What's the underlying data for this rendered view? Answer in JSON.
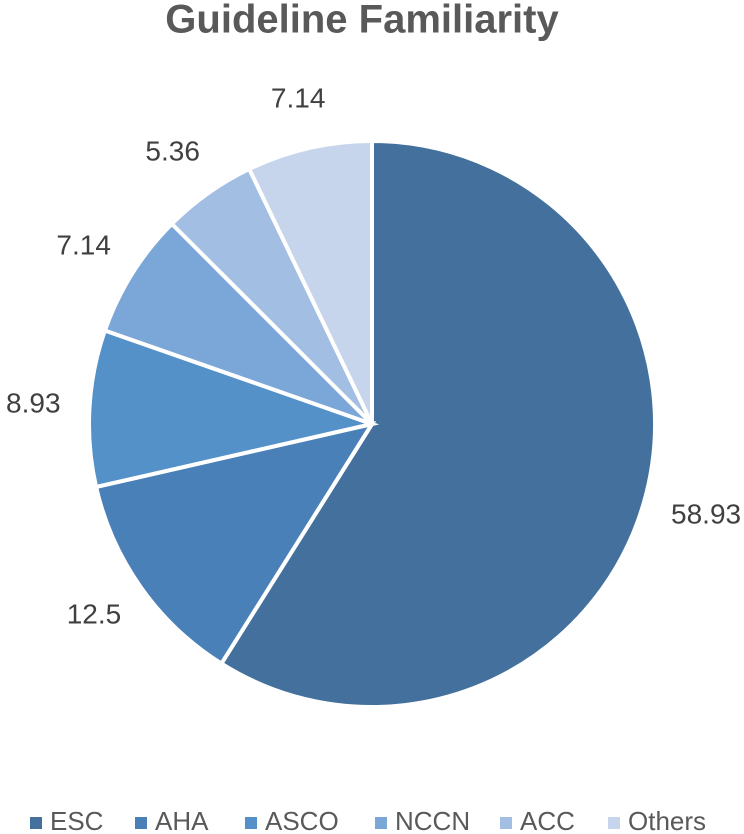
{
  "chart_data": {
    "type": "pie",
    "title": "Guideline Familiarity",
    "categories": [
      "ESC",
      "AHA",
      "ASCO",
      "NCCN",
      "ACC",
      "Others"
    ],
    "values": [
      58.93,
      12.5,
      8.93,
      7.14,
      5.36,
      7.14
    ],
    "colors": [
      "#43709d",
      "#4a80b8",
      "#5591c9",
      "#7ba6d8",
      "#a3bee3",
      "#c6d5eb"
    ],
    "legend": "bottom"
  }
}
